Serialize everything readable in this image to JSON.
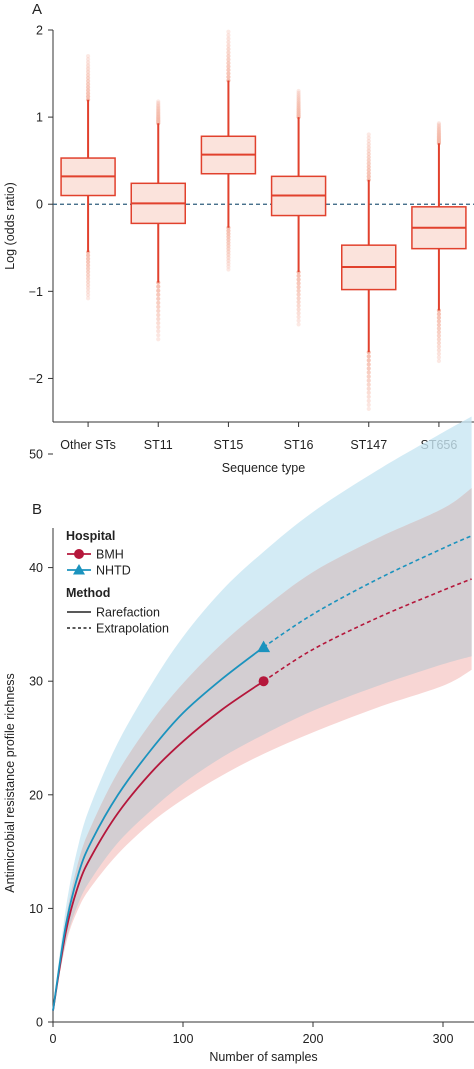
{
  "chart_data": [
    {
      "panel": "A",
      "type": "boxplot",
      "xlabel": "Sequence type",
      "ylabel": "Log (odds ratio)",
      "ylim": [
        -2.5,
        2
      ],
      "yticks": [
        -2,
        -1,
        0,
        1,
        2
      ],
      "reference_line": 0,
      "categories": [
        "Other STs",
        "ST11",
        "ST15",
        "ST16",
        "ST147",
        "ST656"
      ],
      "boxes": [
        {
          "median": 0.32,
          "q1": 0.1,
          "q3": 0.53,
          "whisker_low": -0.55,
          "whisker_high": 1.2,
          "out_low": -1.08,
          "out_high": 1.7
        },
        {
          "median": 0.01,
          "q1": -0.22,
          "q3": 0.24,
          "whisker_low": -0.9,
          "whisker_high": 0.93,
          "out_low": -1.55,
          "out_high": 1.18
        },
        {
          "median": 0.57,
          "q1": 0.35,
          "q3": 0.78,
          "whisker_low": -0.27,
          "whisker_high": 1.42,
          "out_low": -0.75,
          "out_high": 1.98
        },
        {
          "median": 0.1,
          "q1": -0.13,
          "q3": 0.32,
          "whisker_low": -0.78,
          "whisker_high": 1.0,
          "out_low": -1.38,
          "out_high": 1.3
        },
        {
          "median": -0.72,
          "q1": -0.98,
          "q3": -0.47,
          "whisker_low": -1.7,
          "whisker_high": 0.28,
          "out_low": -2.35,
          "out_high": 0.8
        },
        {
          "median": -0.27,
          "q1": -0.51,
          "q3": -0.03,
          "whisker_low": -1.22,
          "whisker_high": 0.7,
          "out_low": -1.8,
          "out_high": 0.93
        }
      ],
      "colors": {
        "stroke": "#e1412d",
        "fill": "#fbe3dc",
        "outlier": "#f4b7a6",
        "reference": "#2f5d7c"
      }
    },
    {
      "panel": "B",
      "type": "line",
      "xlabel": "Number of samples",
      "ylabel": "Antimicrobial resistance profile richness",
      "xlim": [
        0,
        325
      ],
      "ylim": [
        0,
        54
      ],
      "xticks": [
        0,
        100,
        200,
        300
      ],
      "yticks": [
        0,
        10,
        20,
        30,
        40,
        50
      ],
      "legend": {
        "position": "top-left",
        "hospital_title": "Hospital",
        "method_title": "Method",
        "method_items": [
          "Rarefaction",
          "Extrapolation"
        ]
      },
      "series": [
        {
          "name": "BMH",
          "color": "#b5173b",
          "band_color": "#f6c8c6",
          "marker": "circle",
          "observed": {
            "x": 162,
            "y": 30
          },
          "x": [
            0,
            10,
            20,
            30,
            50,
            75,
            100,
            130,
            162,
            200,
            250,
            300,
            322
          ],
          "y": [
            1,
            8,
            12.2,
            14.7,
            18.4,
            21.9,
            24.7,
            27.5,
            30,
            32.8,
            35.6,
            38,
            39
          ],
          "low": [
            1,
            6.9,
            10.1,
            12.0,
            14.8,
            17.5,
            19.6,
            21.7,
            23.6,
            25.5,
            27.7,
            29.6,
            31
          ],
          "high": [
            1,
            9.1,
            14.3,
            17.4,
            22.0,
            26.3,
            29.8,
            33.3,
            36.4,
            39.6,
            42.6,
            45.2,
            47
          ]
        },
        {
          "name": "NHTD",
          "color": "#1b93be",
          "band_color": "#c8e6f3",
          "marker": "triangle",
          "observed": {
            "x": 162,
            "y": 33
          },
          "x": [
            0,
            10,
            20,
            30,
            50,
            75,
            100,
            130,
            162,
            200,
            250,
            300,
            322
          ],
          "y": [
            1,
            8.6,
            13.2,
            16.0,
            20.0,
            23.9,
            27.2,
            30.2,
            33,
            35.9,
            39.0,
            41.7,
            42.8
          ],
          "low": [
            1,
            7.1,
            10.6,
            12.7,
            15.8,
            18.6,
            21.0,
            23.3,
            25.3,
            27.4,
            29.6,
            31.5,
            32.2
          ],
          "high": [
            1,
            10.1,
            15.8,
            19.4,
            24.6,
            29.6,
            33.9,
            38.0,
            41.4,
            44.9,
            48.6,
            51.9,
            53.3
          ]
        }
      ]
    }
  ]
}
